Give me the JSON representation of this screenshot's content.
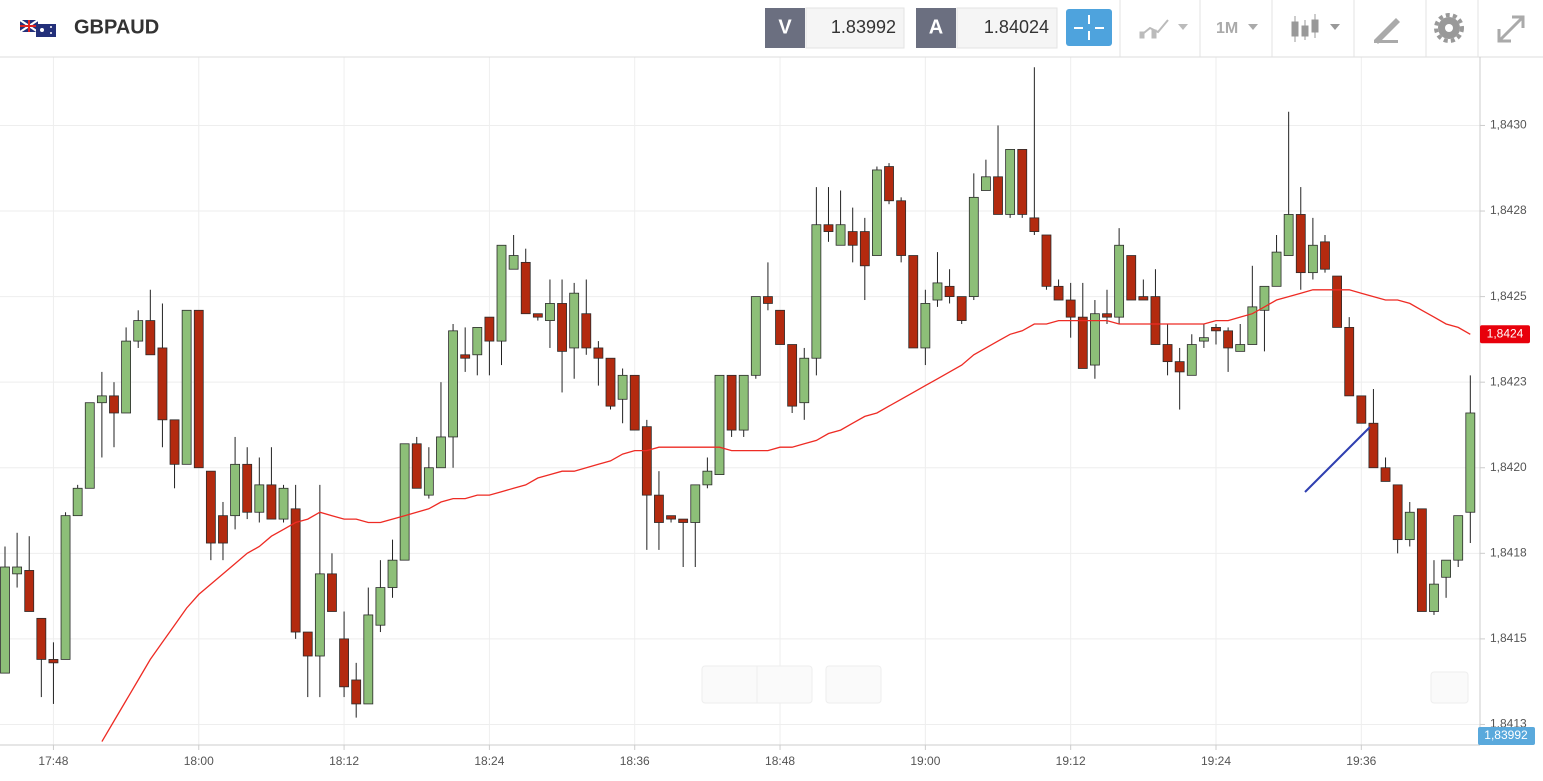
{
  "header": {
    "symbol": "GBPAUD",
    "bid_label": "V",
    "bid": 1.83992,
    "ask_label": "A",
    "ask": 1.84024,
    "timeframe": "1M"
  },
  "chart_data": {
    "type": "candlestick",
    "categories": [
      null,
      null,
      null,
      null,
      "17:48",
      null,
      null,
      null,
      null,
      null,
      null,
      null,
      null,
      null,
      null,
      null,
      "18:00",
      null,
      null,
      null,
      null,
      null,
      null,
      null,
      null,
      null,
      null,
      null,
      "18:12",
      null,
      null,
      null,
      null,
      null,
      null,
      null,
      null,
      null,
      null,
      null,
      "18:24",
      null,
      null,
      null,
      null,
      null,
      null,
      null,
      null,
      null,
      null,
      null,
      "18:36",
      null,
      null,
      null,
      null,
      null,
      null,
      null,
      null,
      null,
      null,
      null,
      "18:48",
      null,
      null,
      null,
      null,
      null,
      null,
      null,
      null,
      null,
      null,
      null,
      "19:00",
      null,
      null,
      null,
      null,
      null,
      null,
      null,
      null,
      null,
      null,
      null,
      "19:12",
      null,
      null,
      null,
      null,
      null,
      null,
      null,
      null,
      null,
      null,
      null,
      "19:24",
      null,
      null,
      null,
      null,
      null,
      null,
      null,
      null,
      null,
      null,
      null,
      "19:36",
      null,
      null,
      null,
      null,
      null,
      null,
      null,
      null,
      null
    ],
    "open": [
      1.8414,
      1.84169,
      1.8417,
      1.84156,
      1.84144,
      1.84144,
      1.84186,
      1.84194,
      1.84219,
      1.84221,
      1.84216,
      1.84237,
      1.84243,
      1.84235,
      1.84214,
      1.84201,
      1.84246,
      1.84199,
      1.84186,
      1.84186,
      1.84201,
      1.84187,
      1.84195,
      1.84185,
      1.84188,
      1.84152,
      1.84145,
      1.84169,
      1.8415,
      1.84138,
      1.84131,
      1.84154,
      1.84165,
      1.84173,
      1.84207,
      1.84192,
      1.842,
      1.84209,
      1.84233,
      1.84233,
      1.84244,
      1.84237,
      1.84258,
      1.8426,
      1.84245,
      1.84243,
      1.84248,
      1.84235,
      1.84245,
      1.84235,
      1.84232,
      1.8422,
      1.84227,
      1.84212,
      1.84192,
      1.84186,
      1.84185,
      1.84184,
      1.84195,
      1.84198,
      1.84227,
      1.84211,
      1.84227,
      1.8425,
      1.84246,
      1.84236,
      1.84219,
      1.84232,
      1.84271,
      1.84265,
      1.84269,
      1.84269,
      1.84262,
      1.84288,
      1.84278,
      1.84262,
      1.84235,
      1.84249,
      1.84253,
      1.8425,
      1.8425,
      1.84281,
      1.84285,
      1.84274,
      1.84293,
      1.84273,
      1.84268,
      1.84253,
      1.84249,
      1.84244,
      1.8423,
      1.84245,
      1.84244,
      1.84262,
      1.8425,
      1.8425,
      1.84236,
      1.84231,
      1.84227,
      1.84237,
      1.84241,
      1.8424,
      1.84234,
      1.84236,
      1.84246,
      1.84253,
      1.84262,
      1.84274,
      1.84257,
      1.84266,
      1.84256,
      1.84241,
      1.84221,
      1.84213,
      1.842,
      1.84195,
      1.84179,
      1.84188,
      1.84158,
      1.84168,
      1.84173,
      1.84187
    ],
    "high": [
      1.84177,
      1.84181,
      1.8418,
      1.84156,
      1.84149,
      1.84187,
      1.84195,
      1.84219,
      1.84228,
      1.84225,
      1.84241,
      1.84246,
      1.84252,
      1.84248,
      1.84214,
      1.84246,
      1.84246,
      1.84199,
      1.8419,
      1.84209,
      1.84206,
      1.84203,
      1.84206,
      1.84195,
      1.84195,
      1.84152,
      1.84195,
      1.84175,
      1.84158,
      1.84143,
      1.84165,
      1.84173,
      1.84179,
      1.84207,
      1.84209,
      1.84206,
      1.84225,
      1.84242,
      1.84241,
      1.84241,
      1.84244,
      1.84265,
      1.84268,
      1.84264,
      1.84245,
      1.84255,
      1.84255,
      1.84254,
      1.84255,
      1.84237,
      1.84232,
      1.84229,
      1.84227,
      1.84214,
      1.84199,
      1.84186,
      1.84185,
      1.84195,
      1.84203,
      1.84227,
      1.84227,
      1.84227,
      1.8425,
      1.8426,
      1.84246,
      1.84236,
      1.84235,
      1.84282,
      1.84282,
      1.84281,
      1.84276,
      1.84273,
      1.84288,
      1.84289,
      1.84279,
      1.84262,
      1.84252,
      1.84263,
      1.84258,
      1.8425,
      1.84286,
      1.8429,
      1.843,
      1.84293,
      1.84293,
      1.84317,
      1.84268,
      1.84255,
      1.84254,
      1.84254,
      1.84249,
      1.84252,
      1.8427,
      1.84262,
      1.84255,
      1.84258,
      1.84242,
      1.84235,
      1.84239,
      1.84242,
      1.84242,
      1.84241,
      1.84242,
      1.84259,
      1.84253,
      1.84268,
      1.84304,
      1.84282,
      1.84273,
      1.84268,
      1.84256,
      1.84244,
      1.84221,
      1.84223,
      1.84203,
      1.84195,
      1.8419,
      1.84188,
      1.84173,
      1.84173,
      1.84186,
      1.84227
    ],
    "low": [
      1.8414,
      1.84165,
      1.84158,
      1.84133,
      1.84131,
      1.84144,
      1.84186,
      1.84194,
      1.84203,
      1.84206,
      1.84216,
      1.84235,
      1.84233,
      1.84206,
      1.84194,
      1.84201,
      1.842,
      1.84173,
      1.84173,
      1.84182,
      1.84185,
      1.84184,
      1.84185,
      1.84184,
      1.8415,
      1.84133,
      1.84133,
      1.84158,
      1.84133,
      1.84127,
      1.84131,
      1.84152,
      1.84162,
      1.84173,
      1.84194,
      1.84191,
      1.842,
      1.842,
      1.84228,
      1.84227,
      1.84227,
      1.8423,
      1.84258,
      1.84245,
      1.84243,
      1.84235,
      1.84222,
      1.84226,
      1.84233,
      1.84224,
      1.84217,
      1.84213,
      1.84211,
      1.84176,
      1.84176,
      1.84184,
      1.84171,
      1.84171,
      1.84194,
      1.84198,
      1.84209,
      1.84209,
      1.84226,
      1.84246,
      1.84236,
      1.84216,
      1.84214,
      1.84227,
      1.84266,
      1.84265,
      1.8426,
      1.84249,
      1.84262,
      1.84277,
      1.8426,
      1.84235,
      1.8423,
      1.84247,
      1.84248,
      1.84242,
      1.84249,
      1.84281,
      1.84274,
      1.84273,
      1.84273,
      1.84268,
      1.84252,
      1.84249,
      1.84238,
      1.84229,
      1.84226,
      1.84242,
      1.84242,
      1.84249,
      1.84249,
      1.84236,
      1.84227,
      1.84217,
      1.84227,
      1.84235,
      1.84236,
      1.84228,
      1.84234,
      1.84236,
      1.84234,
      1.84253,
      1.84262,
      1.84252,
      1.84255,
      1.84257,
      1.84241,
      1.84221,
      1.84213,
      1.842,
      1.84196,
      1.84175,
      1.84177,
      1.84158,
      1.84157,
      1.84162,
      1.84171,
      1.84178
    ],
    "close": [
      1.84171,
      1.84171,
      1.84158,
      1.84144,
      1.84143,
      1.84186,
      1.84194,
      1.84219,
      1.84221,
      1.84216,
      1.84237,
      1.84243,
      1.84233,
      1.84214,
      1.84201,
      1.84246,
      1.842,
      1.84178,
      1.84178,
      1.84201,
      1.84187,
      1.84195,
      1.84185,
      1.84194,
      1.84152,
      1.84145,
      1.84169,
      1.84158,
      1.84136,
      1.84131,
      1.84157,
      1.84165,
      1.84173,
      1.84207,
      1.84194,
      1.842,
      1.84209,
      1.8424,
      1.84232,
      1.84241,
      1.84237,
      1.84265,
      1.84262,
      1.84245,
      1.84244,
      1.84248,
      1.84234,
      1.84251,
      1.84235,
      1.84232,
      1.84218,
      1.84227,
      1.84211,
      1.84192,
      1.84184,
      1.84185,
      1.84184,
      1.84195,
      1.84199,
      1.84227,
      1.84211,
      1.84227,
      1.8425,
      1.84248,
      1.84236,
      1.84218,
      1.84232,
      1.84271,
      1.84269,
      1.84271,
      1.84265,
      1.84259,
      1.84287,
      1.84278,
      1.84262,
      1.84235,
      1.84248,
      1.84254,
      1.8425,
      1.84243,
      1.84279,
      1.84285,
      1.84274,
      1.84293,
      1.84274,
      1.84269,
      1.84253,
      1.84249,
      1.84244,
      1.84229,
      1.84245,
      1.84244,
      1.84265,
      1.84249,
      1.84249,
      1.84236,
      1.84231,
      1.84228,
      1.84236,
      1.84238,
      1.8424,
      1.84235,
      1.84236,
      1.84247,
      1.84253,
      1.84263,
      1.84274,
      1.84257,
      1.84265,
      1.84258,
      1.84241,
      1.84221,
      1.84213,
      1.842,
      1.84196,
      1.84179,
      1.84187,
      1.84158,
      1.84166,
      1.84173,
      1.84186,
      1.84216
    ],
    "up_color": "#8dbf78",
    "down_color": "#b32a0f",
    "ma": {
      "color": "#ee2b24",
      "values": [
        null,
        null,
        null,
        null,
        null,
        null,
        null,
        null,
        1.8412,
        1.84126,
        1.84132,
        1.84138,
        1.84144,
        1.84149,
        1.84154,
        1.84159,
        1.84163,
        1.84166,
        1.84169,
        1.84172,
        1.84175,
        1.84177,
        1.8418,
        1.84182,
        1.84184,
        1.84185,
        1.84187,
        1.84186,
        1.84185,
        1.84185,
        1.84184,
        1.84184,
        1.84185,
        1.84186,
        1.84187,
        1.84188,
        1.8419,
        1.84191,
        1.84191,
        1.84192,
        1.84192,
        1.84193,
        1.84194,
        1.84195,
        1.84197,
        1.84198,
        1.84199,
        1.84199,
        1.842,
        1.84201,
        1.84202,
        1.84204,
        1.84205,
        1.84205,
        1.84206,
        1.84206,
        1.84206,
        1.84206,
        1.84206,
        1.84206,
        1.84205,
        1.84205,
        1.84205,
        1.84205,
        1.84206,
        1.84206,
        1.84207,
        1.84208,
        1.8421,
        1.84211,
        1.84213,
        1.84215,
        1.84216,
        1.84218,
        1.8422,
        1.84222,
        1.84224,
        1.84226,
        1.84228,
        1.8423,
        1.84233,
        1.84235,
        1.84237,
        1.84239,
        1.8424,
        1.84242,
        1.84242,
        1.84243,
        1.84243,
        1.84243,
        1.84243,
        1.84243,
        1.84242,
        1.84242,
        1.84242,
        1.84242,
        1.84242,
        1.84242,
        1.84242,
        1.84242,
        1.84243,
        1.84243,
        1.84244,
        1.84245,
        1.84247,
        1.84249,
        1.8425,
        1.84251,
        1.84252,
        1.84252,
        1.84252,
        1.84252,
        1.84251,
        1.8425,
        1.84249,
        1.84249,
        1.84248,
        1.84246,
        1.84244,
        1.84242,
        1.84241,
        1.84239
      ]
    },
    "ma_label": "1,8424",
    "price_label": "1,83992",
    "ylim": [
      1.84119,
      1.8432
    ],
    "yticks": [
      {
        "value": 1.84125,
        "label": "1,8413"
      },
      {
        "value": 1.8415,
        "label": "1,8415"
      },
      {
        "value": 1.84175,
        "label": "1,8418"
      },
      {
        "value": 1.842,
        "label": "1,8420"
      },
      {
        "value": 1.84225,
        "label": "1,8423"
      },
      {
        "value": 1.8425,
        "label": "1,8425"
      },
      {
        "value": 1.84275,
        "label": "1,8428"
      },
      {
        "value": 1.843,
        "label": "1,8430"
      }
    ],
    "grid": true
  }
}
